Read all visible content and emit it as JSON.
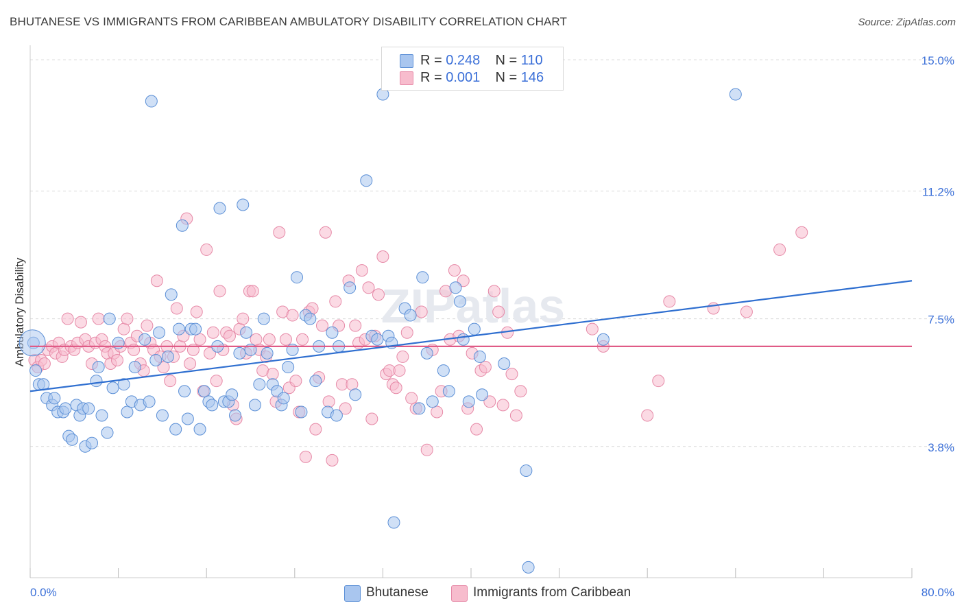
{
  "header": {
    "title": "BHUTANESE VS IMMIGRANTS FROM CARIBBEAN AMBULATORY DISABILITY CORRELATION CHART",
    "source": "Source: ZipAtlas.com"
  },
  "stats": {
    "row1": {
      "r_label": "R = ",
      "r_value": "0.248",
      "n_label": "N = ",
      "n_value": "110"
    },
    "row2": {
      "r_label": "R = ",
      "r_value": "0.001",
      "n_label": "N = ",
      "n_value": "146"
    }
  },
  "legend": {
    "series1": "Bhutanese",
    "series2": "Immigrants from Caribbean"
  },
  "colors": {
    "blue_fill": "#a9c6ef",
    "blue_stroke": "#5b8fd6",
    "blue_line": "#2f6fd0",
    "pink_fill": "#f7bccd",
    "pink_stroke": "#e689a7",
    "pink_line": "#e05a86",
    "tick_label": "#3a6fd8",
    "grid": "#d9d9d9"
  },
  "chart_data": {
    "type": "scatter",
    "title": "BHUTANESE VS IMMIGRANTS FROM CARIBBEAN AMBULATORY DISABILITY CORRELATION CHART",
    "xlabel": "",
    "ylabel": "Ambulatory Disability",
    "xlim": [
      0,
      80
    ],
    "ylim": [
      0,
      15.5
    ],
    "x_tick_labels": [
      "0.0%",
      "80.0%"
    ],
    "y_ticks": [
      3.8,
      7.5,
      11.2,
      15.0
    ],
    "y_tick_labels": [
      "3.8%",
      "7.5%",
      "11.2%",
      "15.0%"
    ],
    "grid": true,
    "legend_position": "bottom",
    "series": [
      {
        "name": "Bhutanese",
        "trend": {
          "x": [
            0,
            80
          ],
          "y": [
            5.4,
            8.6
          ]
        },
        "points": [
          [
            0.3,
            6.8
          ],
          [
            0.5,
            6.0
          ],
          [
            0.8,
            5.6
          ],
          [
            1.2,
            5.6
          ],
          [
            1.5,
            5.2
          ],
          [
            2.0,
            5.0
          ],
          [
            2.2,
            5.2
          ],
          [
            2.5,
            4.8
          ],
          [
            3.0,
            4.8
          ],
          [
            3.2,
            4.9
          ],
          [
            3.5,
            4.1
          ],
          [
            3.8,
            4.0
          ],
          [
            4.2,
            5.0
          ],
          [
            4.5,
            4.7
          ],
          [
            4.8,
            4.9
          ],
          [
            5.0,
            3.8
          ],
          [
            5.3,
            4.9
          ],
          [
            5.6,
            3.9
          ],
          [
            6.0,
            5.7
          ],
          [
            6.2,
            6.1
          ],
          [
            6.5,
            4.7
          ],
          [
            7.0,
            4.2
          ],
          [
            7.2,
            7.5
          ],
          [
            7.5,
            5.5
          ],
          [
            8.0,
            6.8
          ],
          [
            8.5,
            5.6
          ],
          [
            8.8,
            4.8
          ],
          [
            9.2,
            5.1
          ],
          [
            9.5,
            6.1
          ],
          [
            10.0,
            5.0
          ],
          [
            10.4,
            6.9
          ],
          [
            10.8,
            5.1
          ],
          [
            11.0,
            13.8
          ],
          [
            11.4,
            6.3
          ],
          [
            11.7,
            7.1
          ],
          [
            12.0,
            4.7
          ],
          [
            12.5,
            6.4
          ],
          [
            12.8,
            8.2
          ],
          [
            13.2,
            4.3
          ],
          [
            13.5,
            7.2
          ],
          [
            13.8,
            10.2
          ],
          [
            14.0,
            5.4
          ],
          [
            14.3,
            4.6
          ],
          [
            14.6,
            7.2
          ],
          [
            15.0,
            7.2
          ],
          [
            15.4,
            4.3
          ],
          [
            15.8,
            5.4
          ],
          [
            16.2,
            5.1
          ],
          [
            16.5,
            5.0
          ],
          [
            17.0,
            6.7
          ],
          [
            17.2,
            10.7
          ],
          [
            17.6,
            5.1
          ],
          [
            18.0,
            5.1
          ],
          [
            18.3,
            5.3
          ],
          [
            18.6,
            4.7
          ],
          [
            19.0,
            6.5
          ],
          [
            19.3,
            10.8
          ],
          [
            19.6,
            7.1
          ],
          [
            20.0,
            6.6
          ],
          [
            20.4,
            5.0
          ],
          [
            20.8,
            5.6
          ],
          [
            21.2,
            7.5
          ],
          [
            21.5,
            6.5
          ],
          [
            22.0,
            5.6
          ],
          [
            22.4,
            5.4
          ],
          [
            22.8,
            5.0
          ],
          [
            23.0,
            5.2
          ],
          [
            23.4,
            6.1
          ],
          [
            23.8,
            6.6
          ],
          [
            24.2,
            8.7
          ],
          [
            24.6,
            4.8
          ],
          [
            25.0,
            7.6
          ],
          [
            25.4,
            7.5
          ],
          [
            25.9,
            5.7
          ],
          [
            26.2,
            6.7
          ],
          [
            27.0,
            4.8
          ],
          [
            27.4,
            7.1
          ],
          [
            27.8,
            4.7
          ],
          [
            28.0,
            6.7
          ],
          [
            29.0,
            8.4
          ],
          [
            29.5,
            5.3
          ],
          [
            30.5,
            11.5
          ],
          [
            31.0,
            7.0
          ],
          [
            31.5,
            6.9
          ],
          [
            32.0,
            14.0
          ],
          [
            32.5,
            7.0
          ],
          [
            32.8,
            6.8
          ],
          [
            33.0,
            1.6
          ],
          [
            34.0,
            7.8
          ],
          [
            34.5,
            7.6
          ],
          [
            35.3,
            4.9
          ],
          [
            35.6,
            8.7
          ],
          [
            36.0,
            6.5
          ],
          [
            36.5,
            5.1
          ],
          [
            37.5,
            6.0
          ],
          [
            38.0,
            5.4
          ],
          [
            38.6,
            8.4
          ],
          [
            39.0,
            8.0
          ],
          [
            39.3,
            6.9
          ],
          [
            39.8,
            5.1
          ],
          [
            40.3,
            7.2
          ],
          [
            40.8,
            6.4
          ],
          [
            41.0,
            5.3
          ],
          [
            43.0,
            6.2
          ],
          [
            45.0,
            3.1
          ],
          [
            45.2,
            0.3
          ],
          [
            52.0,
            6.9
          ],
          [
            64.0,
            14.0
          ]
        ]
      },
      {
        "name": "Immigrants from Caribbean",
        "trend": {
          "x": [
            0,
            80
          ],
          "y": [
            6.7,
            6.7
          ]
        },
        "points": [
          [
            0.4,
            6.3
          ],
          [
            0.7,
            6.1
          ],
          [
            1.0,
            6.3
          ],
          [
            1.3,
            6.2
          ],
          [
            1.6,
            6.6
          ],
          [
            2.0,
            6.7
          ],
          [
            2.3,
            6.5
          ],
          [
            2.6,
            6.8
          ],
          [
            2.9,
            6.4
          ],
          [
            3.1,
            6.6
          ],
          [
            3.4,
            7.5
          ],
          [
            3.7,
            6.7
          ],
          [
            4.0,
            6.6
          ],
          [
            4.3,
            6.8
          ],
          [
            4.6,
            7.4
          ],
          [
            5.0,
            6.9
          ],
          [
            5.3,
            6.7
          ],
          [
            5.6,
            6.2
          ],
          [
            5.9,
            6.8
          ],
          [
            6.2,
            7.5
          ],
          [
            6.5,
            6.9
          ],
          [
            6.8,
            6.7
          ],
          [
            7.0,
            6.5
          ],
          [
            7.3,
            6.2
          ],
          [
            7.6,
            6.5
          ],
          [
            7.9,
            6.3
          ],
          [
            8.2,
            6.7
          ],
          [
            8.5,
            7.2
          ],
          [
            8.8,
            7.5
          ],
          [
            9.1,
            6.8
          ],
          [
            9.4,
            6.6
          ],
          [
            9.7,
            7.0
          ],
          [
            10.0,
            6.2
          ],
          [
            10.3,
            6.0
          ],
          [
            10.6,
            7.3
          ],
          [
            10.9,
            6.8
          ],
          [
            11.2,
            6.6
          ],
          [
            11.5,
            8.6
          ],
          [
            11.8,
            6.4
          ],
          [
            12.1,
            6.1
          ],
          [
            12.4,
            6.7
          ],
          [
            12.7,
            5.7
          ],
          [
            13.0,
            6.4
          ],
          [
            13.3,
            7.8
          ],
          [
            13.6,
            6.7
          ],
          [
            13.9,
            7.0
          ],
          [
            14.2,
            10.4
          ],
          [
            14.5,
            6.2
          ],
          [
            14.8,
            6.6
          ],
          [
            15.1,
            7.7
          ],
          [
            15.4,
            6.9
          ],
          [
            15.7,
            5.4
          ],
          [
            16.0,
            9.5
          ],
          [
            16.3,
            6.5
          ],
          [
            16.6,
            7.1
          ],
          [
            16.9,
            5.7
          ],
          [
            17.2,
            8.3
          ],
          [
            17.5,
            6.6
          ],
          [
            17.8,
            7.1
          ],
          [
            18.1,
            7.0
          ],
          [
            18.4,
            5.0
          ],
          [
            18.7,
            4.6
          ],
          [
            19.0,
            7.2
          ],
          [
            19.3,
            7.5
          ],
          [
            19.6,
            6.5
          ],
          [
            19.9,
            8.3
          ],
          [
            20.2,
            8.3
          ],
          [
            20.5,
            6.9
          ],
          [
            20.8,
            6.6
          ],
          [
            21.1,
            6.0
          ],
          [
            21.4,
            6.4
          ],
          [
            21.7,
            6.9
          ],
          [
            22.0,
            5.9
          ],
          [
            22.3,
            5.1
          ],
          [
            22.6,
            10.0
          ],
          [
            22.9,
            7.7
          ],
          [
            23.2,
            6.9
          ],
          [
            23.5,
            5.5
          ],
          [
            23.8,
            7.6
          ],
          [
            24.1,
            5.7
          ],
          [
            24.4,
            4.8
          ],
          [
            24.7,
            6.9
          ],
          [
            25.0,
            3.5
          ],
          [
            25.3,
            7.7
          ],
          [
            25.6,
            7.8
          ],
          [
            25.9,
            4.3
          ],
          [
            26.2,
            5.8
          ],
          [
            26.5,
            7.3
          ],
          [
            26.8,
            10.0
          ],
          [
            27.1,
            5.1
          ],
          [
            27.4,
            3.4
          ],
          [
            27.7,
            8.0
          ],
          [
            28.0,
            7.3
          ],
          [
            28.3,
            5.6
          ],
          [
            28.6,
            4.9
          ],
          [
            28.9,
            8.6
          ],
          [
            29.2,
            5.6
          ],
          [
            29.5,
            7.3
          ],
          [
            29.8,
            6.8
          ],
          [
            30.1,
            8.9
          ],
          [
            30.4,
            6.9
          ],
          [
            30.7,
            8.4
          ],
          [
            31.0,
            4.6
          ],
          [
            31.3,
            7.0
          ],
          [
            31.6,
            8.2
          ],
          [
            32.0,
            9.3
          ],
          [
            32.3,
            5.9
          ],
          [
            32.6,
            6.0
          ],
          [
            32.9,
            5.6
          ],
          [
            33.2,
            5.5
          ],
          [
            33.5,
            6.0
          ],
          [
            33.8,
            6.4
          ],
          [
            34.2,
            7.1
          ],
          [
            34.6,
            5.2
          ],
          [
            35.0,
            4.9
          ],
          [
            35.5,
            7.7
          ],
          [
            36.0,
            3.7
          ],
          [
            36.5,
            6.6
          ],
          [
            36.9,
            4.8
          ],
          [
            37.3,
            5.4
          ],
          [
            37.7,
            8.3
          ],
          [
            38.1,
            6.9
          ],
          [
            38.5,
            8.9
          ],
          [
            38.9,
            7.0
          ],
          [
            39.3,
            8.6
          ],
          [
            39.7,
            4.9
          ],
          [
            40.1,
            6.5
          ],
          [
            40.5,
            4.3
          ],
          [
            40.9,
            6.0
          ],
          [
            41.3,
            6.1
          ],
          [
            41.7,
            5.1
          ],
          [
            42.1,
            8.3
          ],
          [
            42.5,
            7.7
          ],
          [
            42.9,
            5.0
          ],
          [
            43.3,
            7.1
          ],
          [
            43.7,
            5.9
          ],
          [
            44.1,
            4.7
          ],
          [
            44.5,
            5.4
          ],
          [
            51.0,
            7.2
          ],
          [
            52.0,
            6.7
          ],
          [
            56.0,
            4.7
          ],
          [
            57.0,
            5.7
          ],
          [
            58.0,
            8.0
          ],
          [
            62.0,
            7.8
          ],
          [
            65.0,
            7.7
          ],
          [
            68.0,
            9.5
          ],
          [
            70.0,
            10.0
          ]
        ]
      }
    ]
  }
}
